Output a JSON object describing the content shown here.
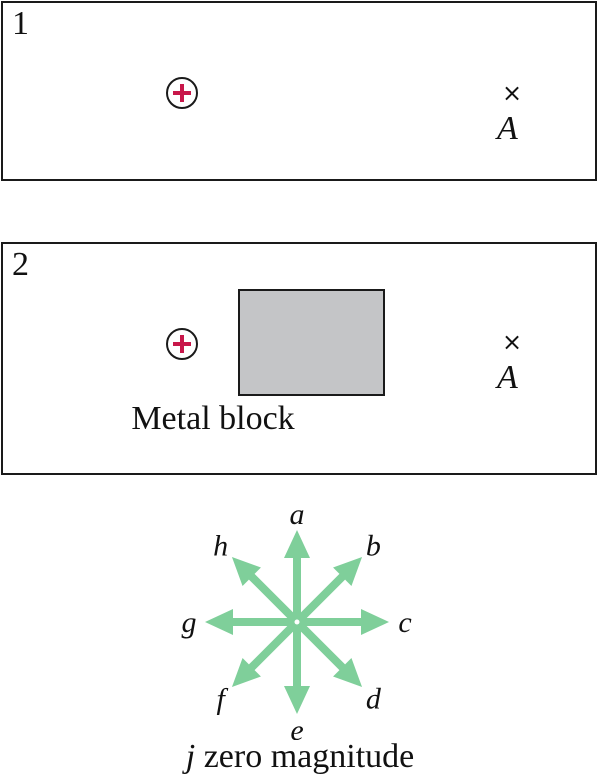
{
  "panel_1": {
    "number": "1",
    "charge_sign": "+",
    "point_label": "A",
    "point_marker": "×"
  },
  "panel_2": {
    "number": "2",
    "charge_sign": "+",
    "point_label": "A",
    "point_marker": "×",
    "block_label": "Metal block"
  },
  "direction_key": {
    "arrows": [
      {
        "label": "a",
        "direction": "up"
      },
      {
        "label": "b",
        "direction": "up-right"
      },
      {
        "label": "c",
        "direction": "right"
      },
      {
        "label": "d",
        "direction": "down-right"
      },
      {
        "label": "e",
        "direction": "down"
      },
      {
        "label": "f",
        "direction": "down-left"
      },
      {
        "label": "g",
        "direction": "left"
      },
      {
        "label": "h",
        "direction": "up-left"
      }
    ],
    "zero_label_letter": "j",
    "zero_label_text": " zero magnitude"
  },
  "colors": {
    "charge_plus": "#c8174a",
    "arrow_fill": "#7fcf9a",
    "metal_block": "#c4c5c7"
  }
}
